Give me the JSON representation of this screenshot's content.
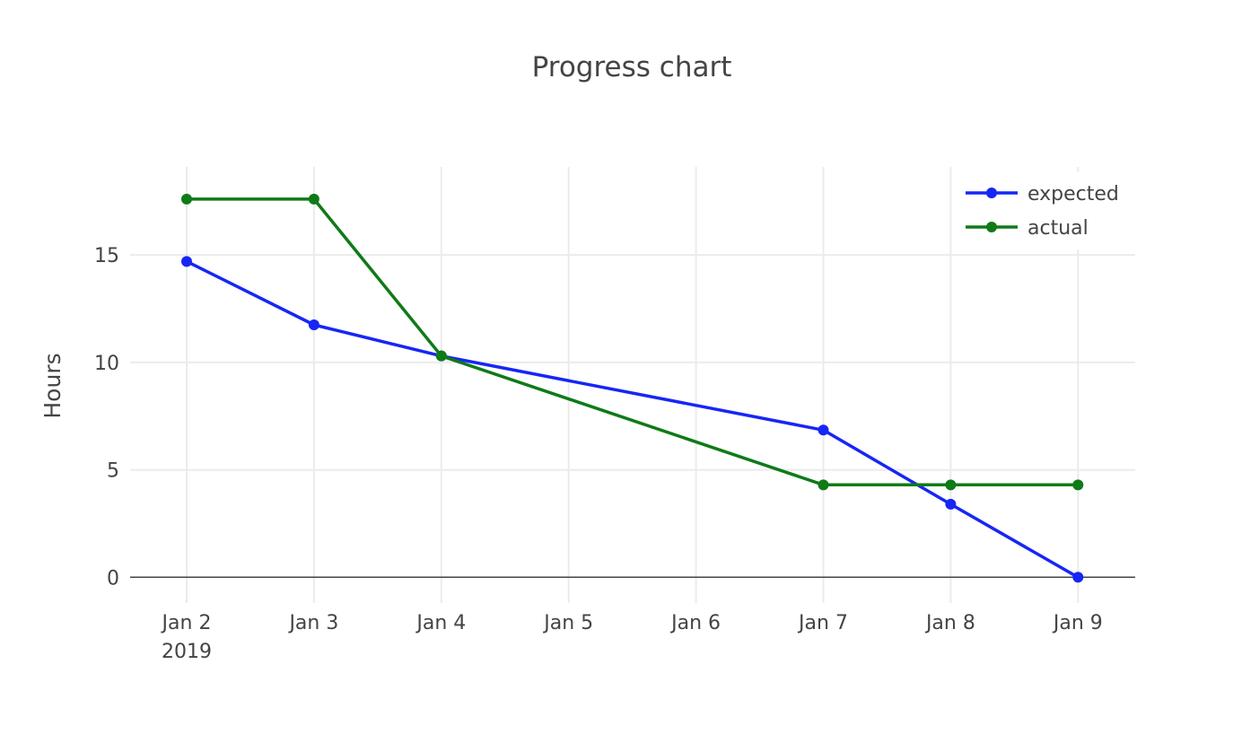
{
  "chart_data": {
    "type": "line",
    "title": "Progress chart",
    "xlabel": "",
    "ylabel": "Hours",
    "x": [
      "2019-01-02",
      "2019-01-03",
      "2019-01-04",
      "2019-01-05",
      "2019-01-06",
      "2019-01-07",
      "2019-01-08",
      "2019-01-09"
    ],
    "x_tick_labels": [
      "Jan 2",
      "Jan 3",
      "Jan 4",
      "Jan 5",
      "Jan 6",
      "Jan 7",
      "Jan 8",
      "Jan 9"
    ],
    "x_tick_sublabel": "2019",
    "y_ticks": [
      0,
      5,
      10,
      15
    ],
    "y_tick_labels": [
      "0",
      "5",
      "10",
      "15"
    ],
    "ylim": [
      -1.2,
      19.1
    ],
    "grid": true,
    "legend_position": "top-right",
    "series": [
      {
        "name": "expected",
        "color": "#1726f5",
        "points": [
          {
            "x": "2019-01-02",
            "y": 14.7
          },
          {
            "x": "2019-01-03",
            "y": 11.75
          },
          {
            "x": "2019-01-04",
            "y": 10.3
          },
          {
            "x": "2019-01-07",
            "y": 6.85
          },
          {
            "x": "2019-01-08",
            "y": 3.4
          },
          {
            "x": "2019-01-09",
            "y": 0
          }
        ]
      },
      {
        "name": "actual",
        "color": "#0f7a18",
        "points": [
          {
            "x": "2019-01-02",
            "y": 17.6
          },
          {
            "x": "2019-01-03",
            "y": 17.6
          },
          {
            "x": "2019-01-04",
            "y": 10.3
          },
          {
            "x": "2019-01-07",
            "y": 4.3
          },
          {
            "x": "2019-01-08",
            "y": 4.3
          },
          {
            "x": "2019-01-09",
            "y": 4.3
          }
        ]
      }
    ]
  }
}
